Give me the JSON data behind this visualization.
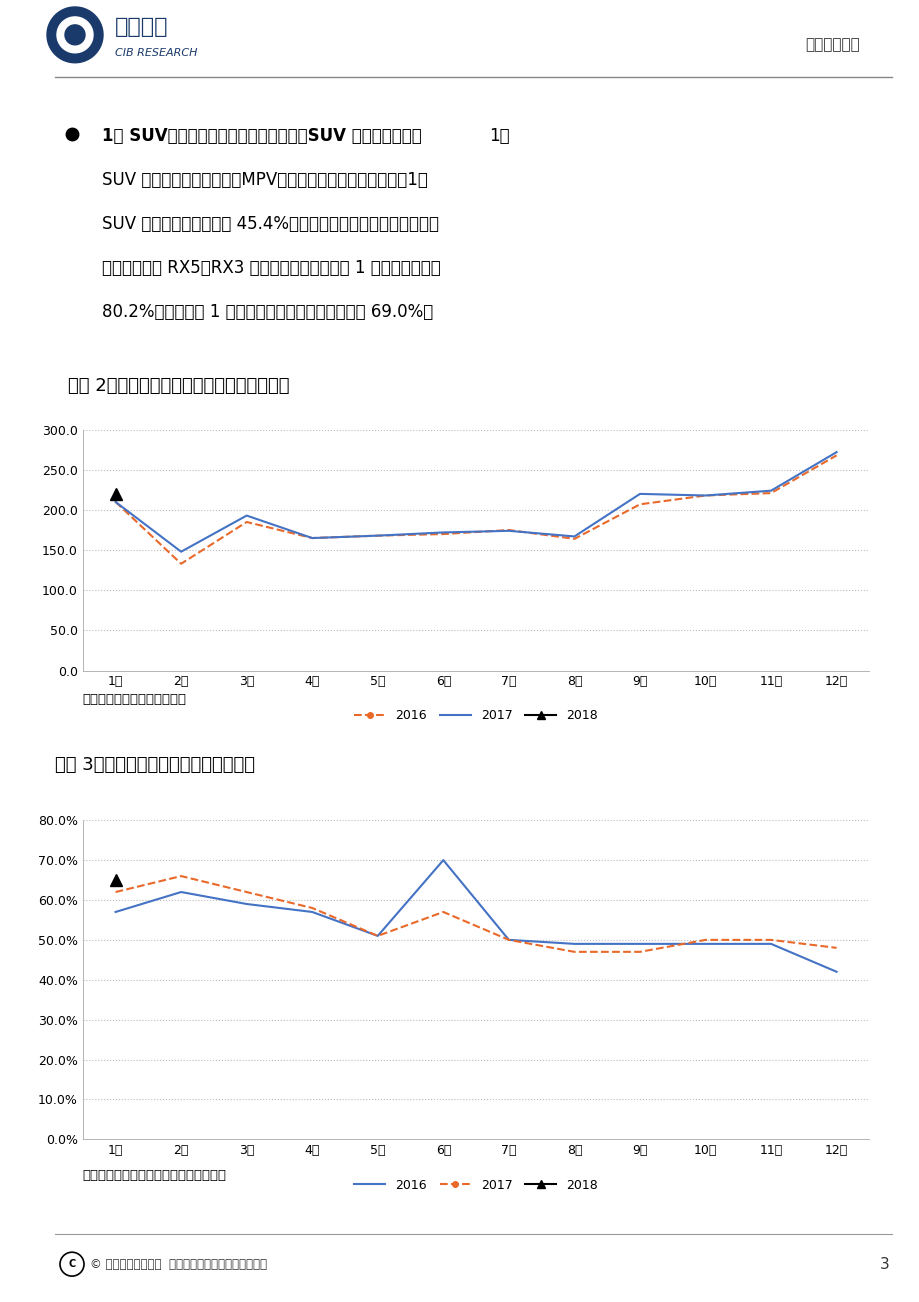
{
  "title_text": "图表 2：乘联会狭义乘用车零售情况（万辆）",
  "title_text2": "图表 3：汽车经销商库存预警指数走势图",
  "source_text1": "数据来源：乘联会、兴业研究",
  "source_text2": "数据来源：中国汽车流通协会、兴业研究",
  "header_left1": "兴业研究",
  "header_left2": "CIB RESEARCH",
  "header_right": "汽车行业报告",
  "footer_text": "© 兴业研究版权所有  使用前请参阅最后一页重要声明",
  "page_num": "3",
  "bullet_bold": "1月 SUV、轿车销量均实现同比正增长，SUV 占比继续提升。",
  "bullet_lines": [
    "1月 SUV、轿车销量均实现同比正增长，SUV 占比继续提升。1月",
    "SUV 和轿车均实现正增长，MPV、交叉型乘用车则继续低迷，1月",
    "SUV 占比继续提升，到达 45.4%。分车企来看，上汽乘用车取得开",
    "门红，在荣威 RX5、RX3 等推动下，上汽乘用车 1 月销量同比增长",
    "80.2%，另外吉利 1 月同样表现强劲，销量同比增长 69.0%。"
  ],
  "chart1": {
    "x_labels": [
      "1月",
      "2月",
      "3月",
      "4月",
      "5月",
      "6月",
      "7月",
      "8月",
      "9月",
      "10月",
      "11月",
      "12月"
    ],
    "ylim": [
      0,
      300
    ],
    "yticks": [
      0,
      50,
      100,
      150,
      200,
      250,
      300
    ],
    "ytick_labels": [
      "0.0",
      "50.0",
      "100.0",
      "150.0",
      "200.0",
      "250.0",
      "300.0"
    ],
    "series_2016": [
      210,
      133,
      185,
      165,
      168,
      170,
      175,
      164,
      207,
      218,
      221,
      268
    ],
    "series_2017": [
      210,
      148,
      193,
      165,
      168,
      172,
      174,
      167,
      220,
      218,
      224,
      272
    ],
    "series_2018_partial": [
      220
    ],
    "color_2016": "#E8692A",
    "color_2017": "#4472C4",
    "color_2018": "#000000"
  },
  "chart2": {
    "x_labels": [
      "1月",
      "2月",
      "3月",
      "4月",
      "5月",
      "6月",
      "7月",
      "8月",
      "9月",
      "10月",
      "11月",
      "12月"
    ],
    "ylim": [
      0,
      80
    ],
    "yticks": [
      0,
      10,
      20,
      30,
      40,
      50,
      60,
      70,
      80
    ],
    "ytick_labels": [
      "0.0%",
      "10.0%",
      "20.0%",
      "30.0%",
      "40.0%",
      "50.0%",
      "60.0%",
      "70.0%",
      "80.0%"
    ],
    "series_2016": [
      57,
      62,
      59,
      57,
      51,
      70,
      50,
      49,
      49,
      49,
      49,
      42
    ],
    "series_2017": [
      62,
      66,
      62,
      58,
      51,
      57,
      50,
      47,
      47,
      50,
      50,
      48
    ],
    "series_2018_partial": [
      65
    ],
    "color_2016": "#4472C4",
    "color_2017": "#E8692A",
    "color_2018": "#000000"
  }
}
